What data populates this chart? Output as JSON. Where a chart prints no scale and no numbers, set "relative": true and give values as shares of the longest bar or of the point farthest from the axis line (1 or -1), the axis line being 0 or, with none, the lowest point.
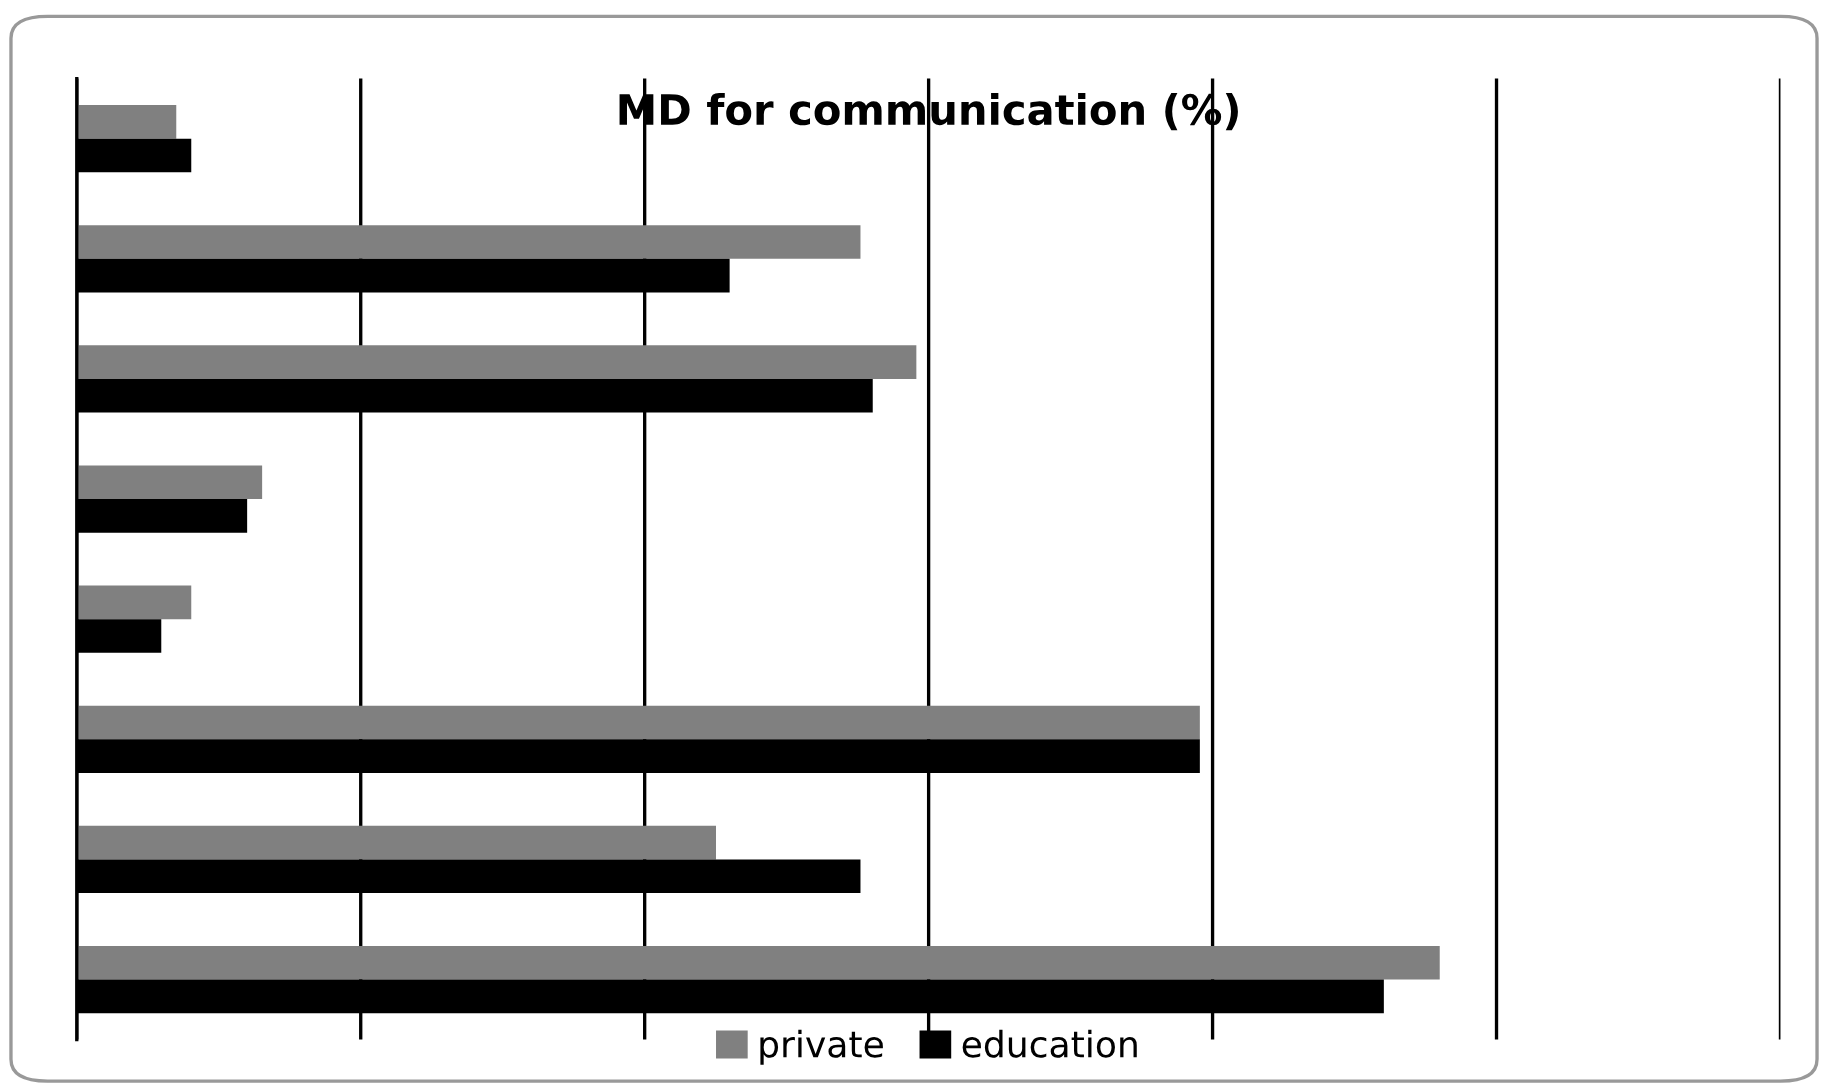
{
  "chart_data": {
    "type": "bar",
    "orientation": "horizontal",
    "relative": true,
    "title": "MD for communication (%)",
    "categories": [
      null,
      null,
      null,
      null,
      null,
      null,
      null,
      null
    ],
    "series": [
      {
        "name": "private",
        "color": "#808080",
        "values": [
          0.073,
          0.575,
          0.616,
          0.136,
          0.084,
          0.824,
          0.469,
          1.0
        ]
      },
      {
        "name": "education",
        "color": "#000000",
        "values": [
          0.084,
          0.479,
          0.584,
          0.125,
          0.062,
          0.824,
          0.575,
          0.959
        ]
      }
    ],
    "grid": "x",
    "legend": "bottom"
  }
}
